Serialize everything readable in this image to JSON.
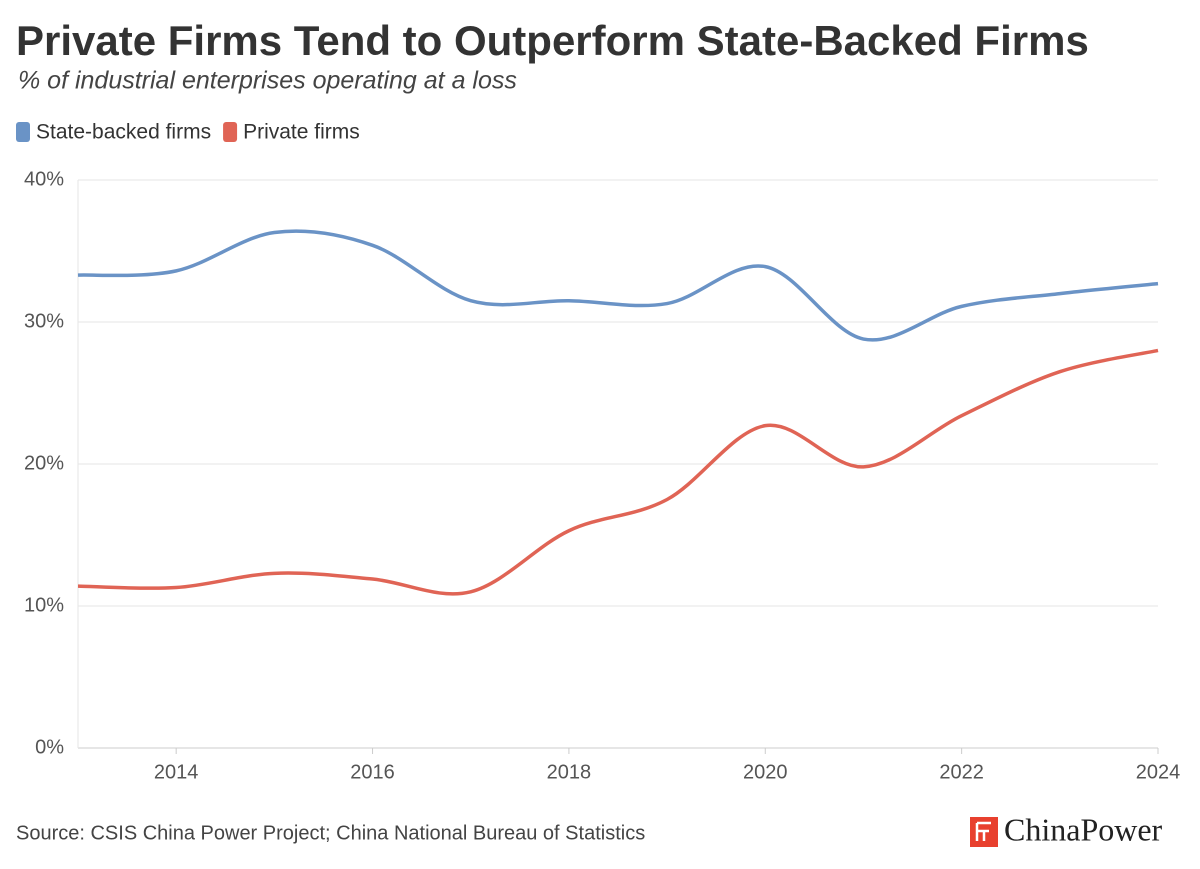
{
  "chart_data": {
    "type": "line",
    "title": "Private Firms Tend to Outperform State-Backed Firms",
    "subtitle": "% of industrial enterprises operating at a loss",
    "x": [
      2013,
      2014,
      2015,
      2016,
      2017,
      2018,
      2019,
      2020,
      2021,
      2022,
      2023,
      2024
    ],
    "series": [
      {
        "name": "State-backed firms",
        "color": "#6a93c6",
        "values": [
          33.3,
          33.6,
          36.3,
          35.4,
          31.5,
          31.5,
          31.3,
          33.9,
          28.8,
          31.1,
          32.0,
          32.7
        ]
      },
      {
        "name": "Private firms",
        "color": "#e06455",
        "values": [
          11.4,
          11.3,
          12.3,
          11.9,
          11.0,
          15.3,
          17.5,
          22.7,
          19.8,
          23.4,
          26.5,
          28.0
        ]
      }
    ],
    "xlim": [
      2013,
      2024
    ],
    "xticks": [
      2014,
      2016,
      2018,
      2020,
      2022,
      2024
    ],
    "ylim": [
      0,
      40
    ],
    "yticks": [
      {
        "value": 0,
        "label": "0%"
      },
      {
        "value": 10,
        "label": "10%"
      },
      {
        "value": 20,
        "label": "20%"
      },
      {
        "value": 30,
        "label": "30%"
      },
      {
        "value": 40,
        "label": "40%"
      }
    ],
    "grid": true,
    "legend": "top-left",
    "source": "Source: CSIS China Power Project; China National Bureau of Statistics",
    "brand": "ChinaPower"
  }
}
